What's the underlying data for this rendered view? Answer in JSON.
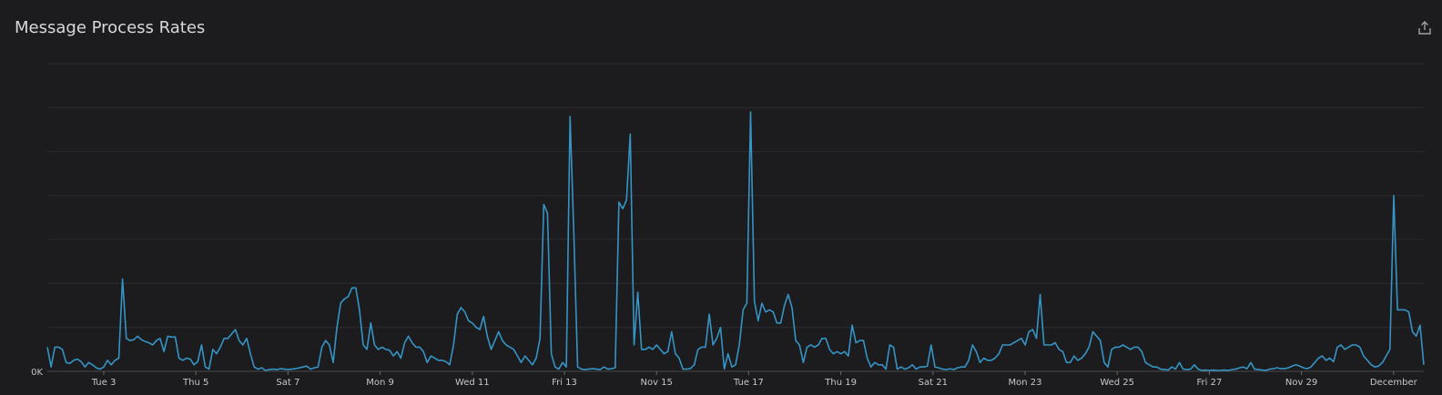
{
  "panel": {
    "title": "Message Process Rates",
    "share_icon": "share-icon"
  },
  "colors": {
    "background": "#1c1c1f",
    "series": "#3594c4",
    "grid": "#2d2d31",
    "text": "#c7c7c7"
  },
  "chart_data": {
    "type": "line",
    "title": "Message Process Rates",
    "xlabel": "",
    "ylabel": "",
    "y_tick_labels": [
      "0K"
    ],
    "x_tick_labels": [
      "Tue 3",
      "Thu 5",
      "Sat 7",
      "Mon 9",
      "Wed 11",
      "Fri 13",
      "Nov 15",
      "Tue 17",
      "Thu 19",
      "Sat 21",
      "Mon 23",
      "Wed 25",
      "Fri 27",
      "Nov 29",
      "December"
    ],
    "x_range": [
      "Nov 2, 12:00",
      "Dec 1, 20:00"
    ],
    "ylim": [
      0,
      7
    ],
    "grid": true,
    "legend": "none",
    "series": [
      {
        "values": [
          0.55,
          0.1,
          0.55,
          0.55,
          0.5,
          0.2,
          0.18,
          0.25,
          0.28,
          0.22,
          0.1,
          0.2,
          0.15,
          0.08,
          0.05,
          0.1,
          0.25,
          0.15,
          0.25,
          0.3,
          2.1,
          0.75,
          0.7,
          0.72,
          0.8,
          0.72,
          0.68,
          0.65,
          0.6,
          0.7,
          0.75,
          0.45,
          0.8,
          0.78,
          0.78,
          0.3,
          0.25,
          0.3,
          0.28,
          0.15,
          0.22,
          0.6,
          0.1,
          0.05,
          0.5,
          0.4,
          0.55,
          0.75,
          0.75,
          0.85,
          0.95,
          0.7,
          0.6,
          0.75,
          0.4,
          0.1,
          0.05,
          0.08,
          0.02,
          0.04,
          0.05,
          0.04,
          0.06,
          0.05,
          0.04,
          0.05,
          0.06,
          0.08,
          0.1,
          0.12,
          0.05,
          0.08,
          0.1,
          0.55,
          0.7,
          0.6,
          0.2,
          1.0,
          1.55,
          1.65,
          1.7,
          1.9,
          1.9,
          1.4,
          0.6,
          0.5,
          1.1,
          0.6,
          0.5,
          0.55,
          0.5,
          0.48,
          0.35,
          0.45,
          0.3,
          0.65,
          0.8,
          0.65,
          0.55,
          0.55,
          0.45,
          0.2,
          0.35,
          0.3,
          0.25,
          0.25,
          0.22,
          0.15,
          0.6,
          1.3,
          1.45,
          1.35,
          1.15,
          1.1,
          1.0,
          0.95,
          1.25,
          0.8,
          0.5,
          0.7,
          0.9,
          0.7,
          0.6,
          0.55,
          0.5,
          0.35,
          0.2,
          0.35,
          0.25,
          0.15,
          0.3,
          0.75,
          3.8,
          3.6,
          0.4,
          0.1,
          0.05,
          0.2,
          0.1,
          5.8,
          3.1,
          0.1,
          0.05,
          0.04,
          0.05,
          0.06,
          0.05,
          0.04,
          0.1,
          0.05,
          0.06,
          0.08,
          3.85,
          3.7,
          3.9,
          5.4,
          0.6,
          1.8,
          0.5,
          0.5,
          0.55,
          0.5,
          0.6,
          0.5,
          0.4,
          0.45,
          0.9,
          0.4,
          0.3,
          0.05,
          0.05,
          0.06,
          0.15,
          0.5,
          0.55,
          0.55,
          1.3,
          0.6,
          0.75,
          1.0,
          0.05,
          0.4,
          0.1,
          0.15,
          0.6,
          1.4,
          1.55,
          5.9,
          1.6,
          1.15,
          1.55,
          1.35,
          1.4,
          1.35,
          1.1,
          1.1,
          1.5,
          1.75,
          1.45,
          0.7,
          0.6,
          0.2,
          0.55,
          0.6,
          0.55,
          0.6,
          0.75,
          0.75,
          0.5,
          0.4,
          0.45,
          0.4,
          0.45,
          0.35,
          1.05,
          0.65,
          0.7,
          0.7,
          0.3,
          0.1,
          0.2,
          0.15,
          0.15,
          0.05,
          0.6,
          0.55,
          0.05,
          0.1,
          0.05,
          0.08,
          0.15,
          0.05,
          0.1,
          0.1,
          0.12,
          0.6,
          0.1,
          0.08,
          0.05,
          0.04,
          0.06,
          0.04,
          0.08,
          0.1,
          0.1,
          0.25,
          0.6,
          0.45,
          0.2,
          0.3,
          0.25,
          0.25,
          0.3,
          0.4,
          0.6,
          0.6,
          0.6,
          0.65,
          0.7,
          0.75,
          0.6,
          0.9,
          0.95,
          0.75,
          1.75,
          0.6,
          0.6,
          0.6,
          0.65,
          0.5,
          0.45,
          0.2,
          0.2,
          0.35,
          0.25,
          0.3,
          0.4,
          0.55,
          0.9,
          0.8,
          0.7,
          0.2,
          0.1,
          0.5,
          0.55,
          0.55,
          0.6,
          0.55,
          0.5,
          0.55,
          0.55,
          0.45,
          0.2,
          0.15,
          0.1,
          0.1,
          0.05,
          0.04,
          0.03,
          0.1,
          0.05,
          0.2,
          0.05,
          0.04,
          0.05,
          0.15,
          0.05,
          0.02,
          0.03,
          0.02,
          0.03,
          0.02,
          0.02,
          0.03,
          0.02,
          0.04,
          0.05,
          0.08,
          0.1,
          0.06,
          0.2,
          0.05,
          0.04,
          0.03,
          0.02,
          0.05,
          0.06,
          0.08,
          0.06,
          0.06,
          0.08,
          0.12,
          0.15,
          0.12,
          0.08,
          0.06,
          0.1,
          0.2,
          0.3,
          0.35,
          0.25,
          0.3,
          0.22,
          0.55,
          0.6,
          0.5,
          0.55,
          0.6,
          0.6,
          0.55,
          0.35,
          0.25,
          0.15,
          0.1,
          0.12,
          0.2,
          0.35,
          0.5,
          4.0,
          1.4,
          1.4,
          1.4,
          1.35,
          0.9,
          0.8,
          1.05,
          0.15
        ],
        "color": "#3594c4"
      }
    ]
  }
}
